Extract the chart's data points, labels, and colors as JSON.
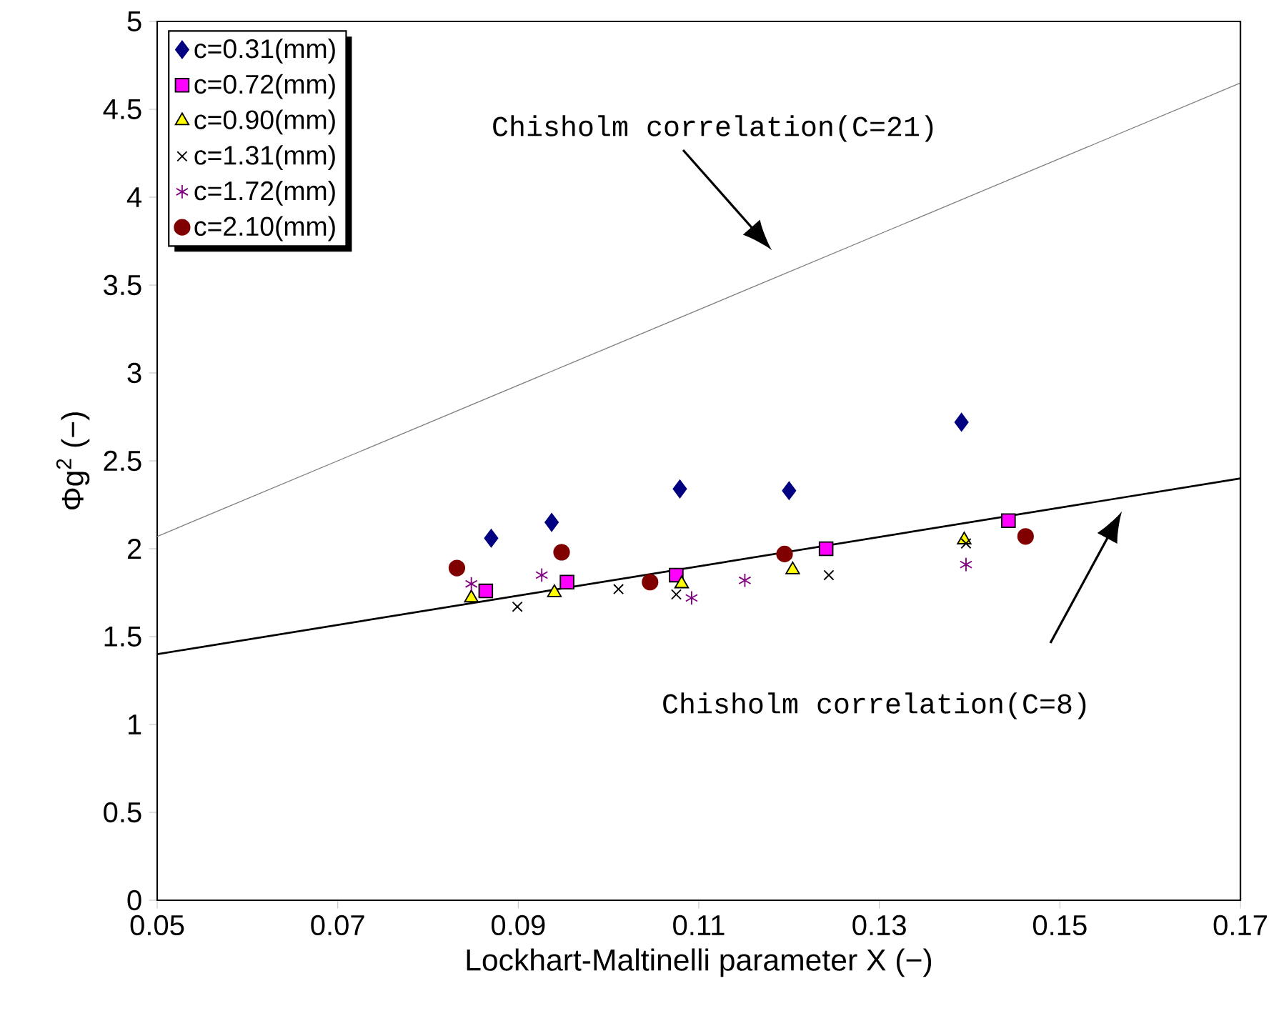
{
  "chart_data": {
    "type": "scatter",
    "xlabel": "Lockhart-Maltinelli parameter X (−)",
    "ylabel": "Φg$^{2}$ (−)",
    "xlim": [
      0.05,
      0.17
    ],
    "xticks": [
      0.05,
      0.07,
      0.09,
      0.11,
      0.13,
      0.15,
      0.17
    ],
    "ylim": [
      0,
      5
    ],
    "yticks": [
      0,
      0.5,
      1,
      1.5,
      2,
      2.5,
      3,
      3.5,
      4,
      4.5,
      5
    ],
    "legend": "top left",
    "grid": false,
    "series": [
      {
        "name": "c=0.31(mm)",
        "color": "#000080",
        "marker": "diamond",
        "x": [
          0.087,
          0.0937,
          0.1079,
          0.12,
          0.1391
        ],
        "values": [
          2.06,
          2.15,
          2.34,
          2.33,
          2.72
        ]
      },
      {
        "name": "c=0.72(mm)",
        "color": "#ff00ff",
        "marker": "square",
        "x": [
          0.0864,
          0.0954,
          0.1075,
          0.1241,
          0.1443
        ],
        "values": [
          1.76,
          1.81,
          1.85,
          2.0,
          2.16
        ]
      },
      {
        "name": "c=0.90(mm)",
        "color": "#ffff00",
        "marker": "triangle",
        "x": [
          0.0848,
          0.094,
          0.1081,
          0.1204,
          0.1394
        ],
        "values": [
          1.72,
          1.75,
          1.8,
          1.88,
          2.05
        ]
      },
      {
        "name": "c=1.31(mm)",
        "color": "#000000",
        "marker": "cross",
        "x": [
          0.0899,
          0.1011,
          0.1075,
          0.1244,
          0.1396
        ],
        "values": [
          1.67,
          1.77,
          1.74,
          1.85,
          2.03
        ]
      },
      {
        "name": "c=1.72(mm)",
        "color": "#800080",
        "x": [
          0.0848,
          0.0926,
          0.1092,
          0.1151,
          0.1396
        ],
        "values": [
          1.8,
          1.85,
          1.72,
          1.82,
          1.91
        ]
      },
      {
        "name": "c=2.10(mm)",
        "color": "#800000",
        "marker": "circle",
        "x": [
          0.0832,
          0.0948,
          0.1046,
          0.1195,
          0.1462
        ],
        "values": [
          1.89,
          1.98,
          1.81,
          1.97,
          2.07
        ]
      },
      {
        "type": "line",
        "color": "#808080",
        "marker": "none",
        "x": [
          0.05,
          0.17
        ],
        "values": [
          2.07,
          4.65
        ]
      },
      {
        "type": "line",
        "color": "#000000",
        "marker": "none",
        "x": [
          0.05,
          0.17
        ],
        "values": [
          1.4,
          2.4
        ]
      }
    ],
    "annotations": [
      "Chisholm correlation(C=21)",
      "Chisholm correlation(C=8)"
    ]
  }
}
